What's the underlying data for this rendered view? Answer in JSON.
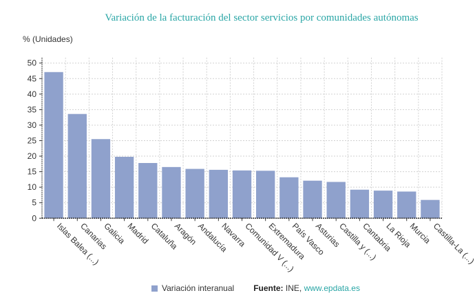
{
  "chart_data": {
    "type": "bar",
    "title": "Variación de la facturación del sector servicios por comunidades autónomas",
    "ylabel": "% (Unidades)",
    "xlabel": "",
    "ylim": [
      0,
      50
    ],
    "yticks": [
      0,
      5,
      10,
      15,
      20,
      25,
      30,
      35,
      40,
      45,
      50
    ],
    "grid": true,
    "legend_position": "bottom",
    "categories": [
      "Islas Balea (...)",
      "Canarias",
      "Galicia",
      "Madrid",
      "Cataluña",
      "Aragón",
      "Andalucía",
      "Navarra",
      "Comunidad V (...)",
      "Extremadura",
      "País Vasco",
      "Asturias",
      "Castilla y (...)",
      "Cantabria",
      "La Rioja",
      "Murcia",
      "Castilla-La (...)"
    ],
    "series": [
      {
        "name": "Variación interanual",
        "color": "#8fa1cc",
        "values": [
          47.1,
          33.6,
          25.5,
          19.8,
          17.8,
          16.5,
          15.9,
          15.6,
          15.4,
          15.3,
          13.2,
          12.1,
          11.7,
          9.2,
          8.9,
          8.6,
          5.9
        ]
      }
    ]
  },
  "source": {
    "label": "Fuente:",
    "text": "INE,",
    "link": "www.epdata.es"
  }
}
